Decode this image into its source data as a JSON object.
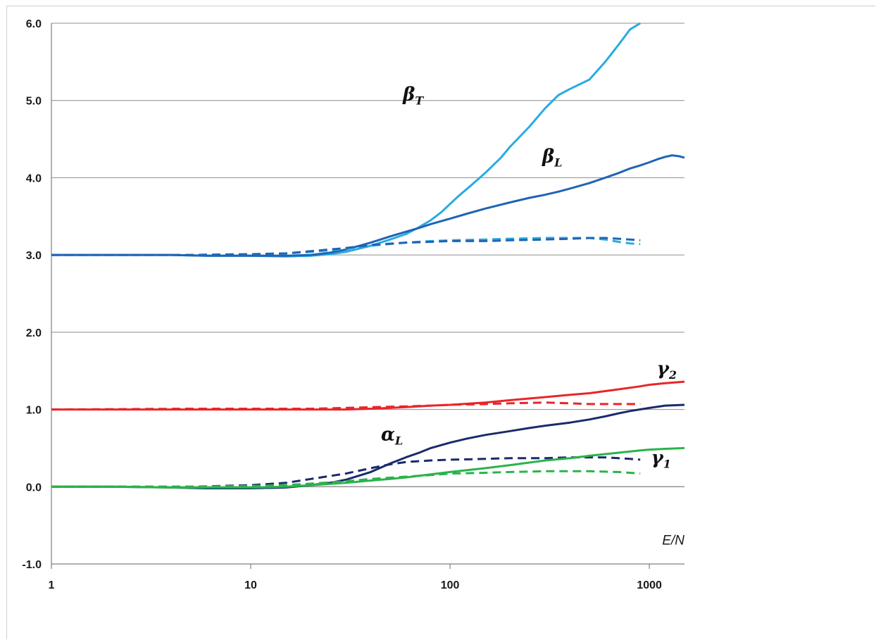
{
  "chart_data": {
    "type": "line",
    "xscale": "log",
    "xlim": [
      1,
      1500
    ],
    "ylim": [
      -1.0,
      6.0
    ],
    "xticks": [
      "1",
      "10",
      "100",
      "1000"
    ],
    "yticks": [
      "-1.0",
      "0.0",
      "1.0",
      "2.0",
      "3.0",
      "4.0",
      "5.0",
      "6.0"
    ],
    "xlabel": "E/N",
    "grid": "horizontal",
    "legend": "none",
    "annotations": [
      {
        "base": "β",
        "sub": "T",
        "x": 58,
        "y": 5.0
      },
      {
        "base": "β",
        "sub": "L",
        "x": 290,
        "y": 4.2
      },
      {
        "base": "γ",
        "sub": "2",
        "x": 1090,
        "y": 1.45
      },
      {
        "base": "α",
        "sub": "L",
        "x": 45,
        "y": 0.6
      },
      {
        "base": "γ",
        "sub": "1",
        "x": 1020,
        "y": 0.3
      }
    ],
    "series": [
      {
        "id": "beta-T",
        "color": "#29abe2",
        "dashed": false,
        "x": [
          1,
          2,
          4,
          6,
          10,
          15,
          20,
          25,
          30,
          40,
          50,
          60,
          70,
          80,
          90,
          100,
          110,
          130,
          150,
          180,
          200,
          250,
          300,
          350,
          400,
          500,
          600,
          700,
          800,
          900
        ],
        "y": [
          3.0,
          3.0,
          3.0,
          2.99,
          2.99,
          2.98,
          2.99,
          3.01,
          3.04,
          3.12,
          3.2,
          3.27,
          3.36,
          3.45,
          3.55,
          3.66,
          3.76,
          3.92,
          4.06,
          4.26,
          4.4,
          4.66,
          4.9,
          5.07,
          5.15,
          5.27,
          5.5,
          5.72,
          5.92,
          6.0
        ]
      },
      {
        "id": "beta-L",
        "color": "#1f64b4",
        "dashed": false,
        "x": [
          1,
          2,
          4,
          6,
          10,
          15,
          20,
          25,
          30,
          40,
          50,
          60,
          70,
          80,
          100,
          120,
          150,
          200,
          250,
          300,
          350,
          400,
          500,
          600,
          700,
          800,
          900,
          1000,
          1100,
          1200,
          1300,
          1400,
          1500
        ],
        "y": [
          3.0,
          3.0,
          3.0,
          2.99,
          2.99,
          2.99,
          3.0,
          3.03,
          3.07,
          3.16,
          3.24,
          3.3,
          3.35,
          3.4,
          3.47,
          3.53,
          3.6,
          3.68,
          3.74,
          3.78,
          3.82,
          3.86,
          3.93,
          4.0,
          4.06,
          4.12,
          4.16,
          4.2,
          4.24,
          4.27,
          4.29,
          4.28,
          4.26
        ]
      },
      {
        "id": "beta-T-dashed",
        "color": "#29abe2",
        "dashed": true,
        "x": [
          1,
          5,
          10,
          15,
          20,
          30,
          40,
          60,
          80,
          100,
          150,
          200,
          300,
          400,
          500,
          600,
          700,
          800,
          900
        ],
        "y": [
          3.0,
          3.0,
          3.01,
          3.02,
          3.04,
          3.08,
          3.12,
          3.16,
          3.18,
          3.19,
          3.2,
          3.21,
          3.22,
          3.22,
          3.22,
          3.2,
          3.17,
          3.15,
          3.14
        ]
      },
      {
        "id": "beta-L-dashed",
        "color": "#1f64b4",
        "dashed": true,
        "x": [
          1,
          5,
          10,
          15,
          20,
          30,
          40,
          60,
          80,
          100,
          150,
          200,
          300,
          400,
          500,
          600,
          700,
          800,
          900
        ],
        "y": [
          3.0,
          3.0,
          3.01,
          3.02,
          3.05,
          3.09,
          3.13,
          3.16,
          3.17,
          3.18,
          3.18,
          3.19,
          3.2,
          3.21,
          3.22,
          3.22,
          3.21,
          3.2,
          3.19
        ]
      },
      {
        "id": "gamma-2",
        "color": "#e8262a",
        "dashed": false,
        "x": [
          1,
          2,
          4,
          6,
          10,
          15,
          20,
          30,
          40,
          50,
          60,
          80,
          100,
          150,
          200,
          300,
          400,
          500,
          700,
          900,
          1000,
          1200,
          1500
        ],
        "y": [
          1.0,
          1.0,
          1.0,
          1.0,
          1.0,
          1.0,
          1.0,
          1.0,
          1.01,
          1.02,
          1.03,
          1.05,
          1.06,
          1.09,
          1.12,
          1.16,
          1.19,
          1.21,
          1.26,
          1.3,
          1.32,
          1.34,
          1.36
        ]
      },
      {
        "id": "gamma-2-dashed",
        "color": "#e8262a",
        "dashed": true,
        "x": [
          1,
          5,
          10,
          20,
          30,
          40,
          60,
          80,
          100,
          150,
          200,
          300,
          400,
          500,
          700,
          900
        ],
        "y": [
          1.0,
          1.01,
          1.01,
          1.01,
          1.02,
          1.03,
          1.04,
          1.05,
          1.06,
          1.07,
          1.08,
          1.09,
          1.08,
          1.07,
          1.07,
          1.07
        ]
      },
      {
        "id": "alpha-L",
        "color": "#1b2a6b",
        "dashed": false,
        "x": [
          1,
          2,
          4,
          6,
          10,
          15,
          20,
          25,
          30,
          40,
          50,
          60,
          70,
          80,
          100,
          120,
          150,
          200,
          250,
          300,
          400,
          500,
          600,
          700,
          800,
          1000,
          1200,
          1500
        ],
        "y": [
          0.0,
          0.0,
          -0.01,
          -0.02,
          -0.02,
          -0.01,
          0.02,
          0.05,
          0.09,
          0.19,
          0.3,
          0.38,
          0.44,
          0.5,
          0.57,
          0.62,
          0.67,
          0.72,
          0.76,
          0.79,
          0.83,
          0.87,
          0.91,
          0.95,
          0.98,
          1.02,
          1.05,
          1.06
        ]
      },
      {
        "id": "alpha-L-dashed",
        "color": "#1b2a6b",
        "dashed": true,
        "x": [
          1,
          5,
          10,
          15,
          20,
          30,
          40,
          50,
          60,
          80,
          100,
          150,
          200,
          300,
          400,
          500,
          600,
          700,
          800,
          900
        ],
        "y": [
          0.0,
          0.0,
          0.02,
          0.05,
          0.1,
          0.17,
          0.24,
          0.29,
          0.32,
          0.34,
          0.35,
          0.36,
          0.37,
          0.37,
          0.38,
          0.38,
          0.38,
          0.37,
          0.36,
          0.35
        ]
      },
      {
        "id": "gamma-1",
        "color": "#2ab34a",
        "dashed": false,
        "x": [
          1,
          2,
          4,
          6,
          10,
          15,
          20,
          30,
          40,
          50,
          60,
          80,
          100,
          150,
          200,
          300,
          400,
          500,
          700,
          900,
          1000,
          1200,
          1500
        ],
        "y": [
          0.0,
          0.0,
          -0.01,
          -0.01,
          -0.01,
          0.0,
          0.02,
          0.05,
          0.08,
          0.1,
          0.12,
          0.16,
          0.19,
          0.24,
          0.28,
          0.34,
          0.37,
          0.4,
          0.44,
          0.47,
          0.48,
          0.49,
          0.5
        ]
      },
      {
        "id": "gamma-1-dashed",
        "color": "#2ab34a",
        "dashed": true,
        "x": [
          1,
          5,
          10,
          15,
          20,
          30,
          40,
          60,
          80,
          100,
          150,
          200,
          300,
          400,
          500,
          700,
          900
        ],
        "y": [
          0.0,
          0.0,
          0.01,
          0.02,
          0.04,
          0.07,
          0.1,
          0.13,
          0.15,
          0.17,
          0.18,
          0.19,
          0.2,
          0.2,
          0.2,
          0.19,
          0.17
        ]
      }
    ]
  }
}
